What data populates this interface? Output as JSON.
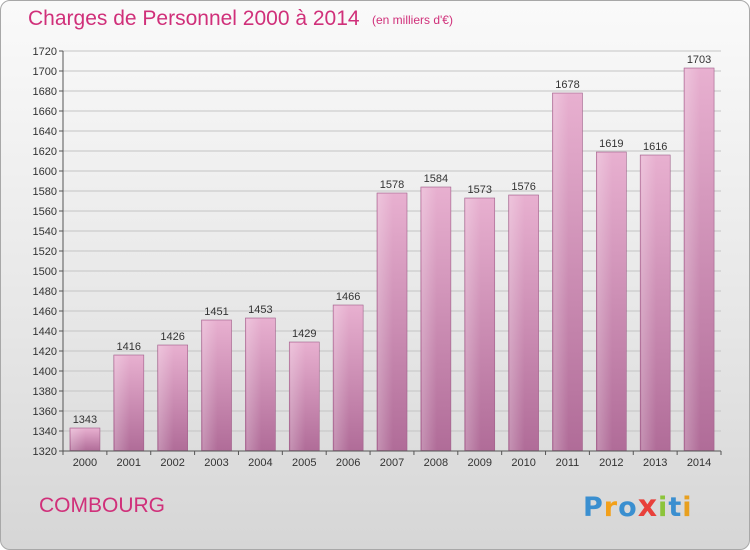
{
  "chart_data": {
    "type": "bar",
    "title": "Charges de Personnel 2000 à 2014",
    "subtitle": "(en milliers d'€)",
    "categories": [
      "2000",
      "2001",
      "2002",
      "2003",
      "2004",
      "2005",
      "2006",
      "2007",
      "2008",
      "2009",
      "2010",
      "2011",
      "2012",
      "2013",
      "2014"
    ],
    "values": [
      1343,
      1416,
      1426,
      1451,
      1453,
      1429,
      1466,
      1578,
      1584,
      1573,
      1576,
      1678,
      1619,
      1616,
      1703
    ],
    "ylim": [
      1320,
      1720
    ],
    "ytick_step": 20,
    "grid": true,
    "bar_color": "#d890b8"
  },
  "footer": {
    "city": "COMBOURG",
    "logo_letters": [
      "P",
      "r",
      "o",
      "x",
      "i",
      "t",
      "i"
    ],
    "logo_colors": [
      "#3a8fd0",
      "#f2a01a",
      "#3a8fd0",
      "#e8403a",
      "#8cc43a",
      "#3a8fd0",
      "#e8a020"
    ]
  }
}
